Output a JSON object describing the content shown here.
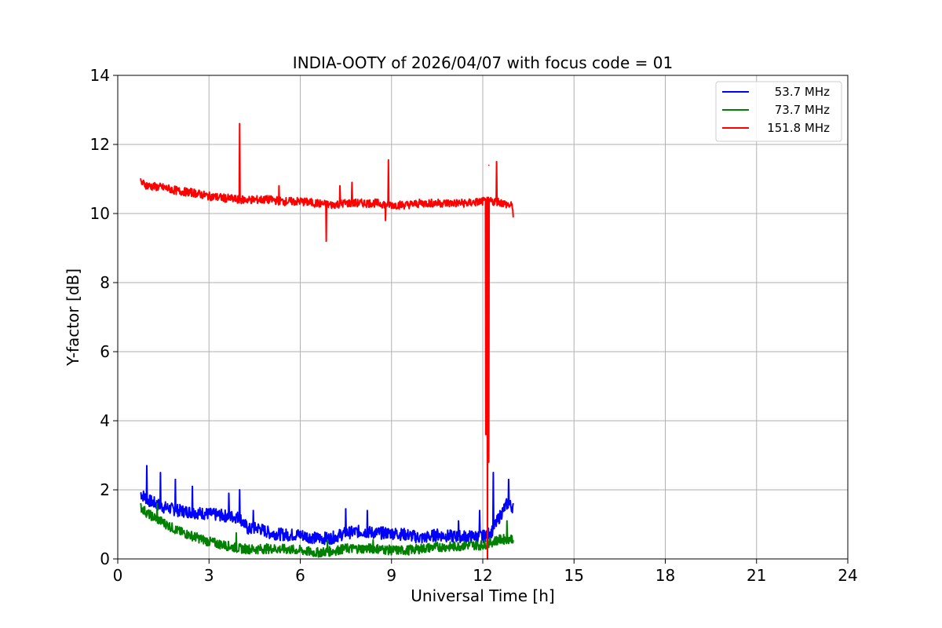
{
  "chart_data": {
    "type": "line",
    "title": "INDIA-OOTY of 2026/04/07 with focus code = 01",
    "xlabel": "Universal Time [h]",
    "ylabel": "Y-factor [dB]",
    "xlim": [
      0,
      24
    ],
    "ylim": [
      0,
      14
    ],
    "xticks": [
      0,
      3,
      6,
      9,
      12,
      15,
      18,
      21,
      24
    ],
    "yticks": [
      0,
      2,
      4,
      6,
      8,
      10,
      12,
      14
    ],
    "grid": true,
    "legend_position": "top-right",
    "series": [
      {
        "name": "53.7 MHz",
        "color": "#0000ff",
        "x": [
          0.75,
          1.0,
          1.5,
          2.0,
          2.5,
          3.0,
          3.5,
          4.0,
          4.3,
          4.6,
          5.0,
          5.5,
          6.0,
          6.5,
          7.0,
          7.5,
          8.0,
          8.5,
          9.0,
          9.5,
          10.0,
          10.5,
          11.0,
          11.5,
          12.0,
          12.3,
          12.6,
          12.8,
          13.0
        ],
        "values": [
          1.9,
          1.7,
          1.5,
          1.4,
          1.35,
          1.3,
          1.25,
          1.2,
          0.85,
          0.9,
          0.75,
          0.7,
          0.7,
          0.6,
          0.6,
          0.75,
          0.8,
          0.75,
          0.75,
          0.7,
          0.6,
          0.7,
          0.65,
          0.65,
          0.65,
          0.8,
          1.3,
          1.6,
          1.5
        ],
        "spikes": [
          [
            0.95,
            2.7
          ],
          [
            1.4,
            2.5
          ],
          [
            1.9,
            2.3
          ],
          [
            2.45,
            2.1
          ],
          [
            3.65,
            1.9
          ],
          [
            4.0,
            2.0
          ],
          [
            4.45,
            1.4
          ],
          [
            7.5,
            1.45
          ],
          [
            8.2,
            1.4
          ],
          [
            11.2,
            1.1
          ],
          [
            11.9,
            1.4
          ],
          [
            12.35,
            2.5
          ],
          [
            12.85,
            2.3
          ]
        ]
      },
      {
        "name": "73.7 MHz",
        "color": "#008000",
        "x": [
          0.75,
          1.0,
          1.5,
          2.0,
          2.5,
          3.0,
          3.5,
          4.0,
          4.5,
          5.0,
          5.5,
          6.0,
          6.5,
          7.0,
          7.5,
          8.0,
          8.5,
          9.0,
          9.5,
          10.0,
          10.5,
          11.0,
          11.5,
          12.0,
          12.5,
          13.0
        ],
        "values": [
          1.5,
          1.3,
          1.05,
          0.8,
          0.65,
          0.5,
          0.4,
          0.3,
          0.28,
          0.3,
          0.28,
          0.25,
          0.18,
          0.22,
          0.3,
          0.3,
          0.3,
          0.25,
          0.25,
          0.3,
          0.35,
          0.35,
          0.4,
          0.4,
          0.55,
          0.6
        ],
        "spikes": [
          [
            1.3,
            1.6
          ],
          [
            3.9,
            0.75
          ],
          [
            6.9,
            0.55
          ],
          [
            8.4,
            0.55
          ],
          [
            12.8,
            1.1
          ]
        ]
      },
      {
        "name": "151.8 MHz",
        "color": "#ff0000",
        "x": [
          0.75,
          1.0,
          1.5,
          2.0,
          2.5,
          3.0,
          3.5,
          4.0,
          4.5,
          5.0,
          5.5,
          6.0,
          6.5,
          7.0,
          7.5,
          8.0,
          8.5,
          9.0,
          9.5,
          10.0,
          10.5,
          11.0,
          11.5,
          12.0,
          12.5,
          13.0
        ],
        "values": [
          10.9,
          10.8,
          10.75,
          10.65,
          10.6,
          10.5,
          10.45,
          10.4,
          10.4,
          10.4,
          10.35,
          10.35,
          10.3,
          10.25,
          10.3,
          10.3,
          10.3,
          10.25,
          10.25,
          10.3,
          10.3,
          10.3,
          10.3,
          10.35,
          10.35,
          10.2
        ],
        "spikes": [
          [
            4.0,
            12.6
          ],
          [
            5.3,
            10.8
          ],
          [
            7.3,
            10.8
          ],
          [
            7.7,
            10.9
          ],
          [
            8.9,
            11.55
          ],
          [
            12.45,
            11.5
          ],
          [
            12.2,
            11.4
          ]
        ],
        "dips": [
          [
            6.85,
            9.2
          ],
          [
            8.8,
            9.8
          ],
          [
            12.1,
            3.6
          ],
          [
            12.15,
            0.0
          ],
          [
            12.2,
            2.8
          ],
          [
            13.0,
            9.9
          ]
        ]
      }
    ]
  }
}
